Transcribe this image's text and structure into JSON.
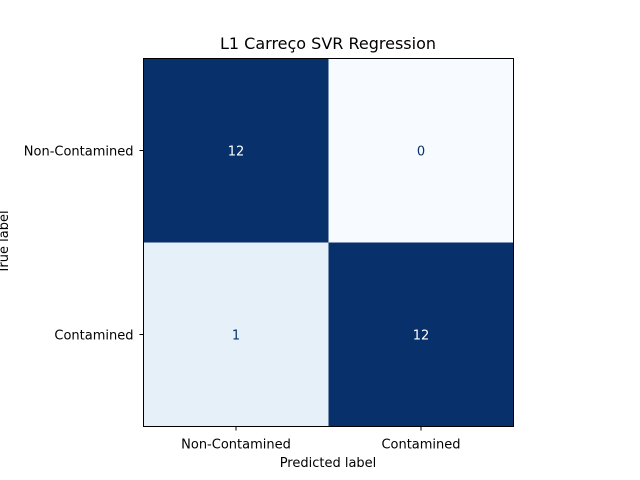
{
  "chart_data": {
    "type": "heatmap",
    "title": "L1 Carreço SVR Regression",
    "xlabel": "Predicted label",
    "ylabel": "True label",
    "x_categories": [
      "Non-Contamined",
      "Contamined"
    ],
    "y_categories": [
      "Non-Contamined",
      "Contamined"
    ],
    "values": [
      [
        12,
        0
      ],
      [
        1,
        12
      ]
    ],
    "colormap": "Blues",
    "colors": {
      "max": "#08306b",
      "min": "#f7fbff",
      "low": "#e3eef8",
      "text_on_dark": "#ffffff",
      "text_on_light": "#08306b"
    },
    "grid": false
  }
}
